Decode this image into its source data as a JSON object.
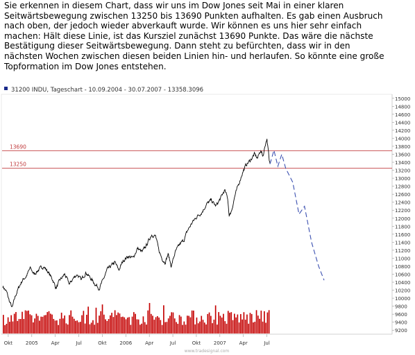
{
  "intro_lines": [
    "Sie erkennen in diesem Chart, dass wir uns im Dow Jones seit Mai in einer  klaren",
    "Seitwärtsbewegung zwischen 13250 bis 13690 Punkten aufhalten. Es gab  einen Ausbruch",
    "nach oben, der jedoch wieder abverkauft wurde. Wir können es uns  hier sehr einfach",
    "machen: Hält diese Linie, ist das Kursziel zunächst 13690  Punkte. Das wäre die nächste",
    "Bestätigung dieser Seitwärtsbewegung. Dann steht zu  befürchten, dass wir in den",
    "nächsten Wochen zwischen diesen beiden Linien hin-  und herlaufen. So könnte eine große",
    "Topformation im Dow Jones entstehen."
  ],
  "chart_data": {
    "type": "line",
    "header": "31200 INDU, Tageschart - 10.09.2004 - 30.07.2007 - 13358.3096",
    "watermark": "www.tradesignal.com",
    "colors": {
      "price": "#000000",
      "projection": "#3a4fb0",
      "resistance": "#c0393b",
      "volume": "#c40000",
      "header_marker": "#1a2a8a",
      "axis_text": "#333333"
    },
    "ylim": [
      9100,
      15100
    ],
    "y_ticks": [
      15000,
      14800,
      14600,
      14400,
      14200,
      14000,
      13800,
      13600,
      13400,
      13200,
      13000,
      12800,
      12600,
      12400,
      12200,
      12000,
      11800,
      11600,
      11400,
      11200,
      11000,
      10800,
      10600,
      10400,
      10200,
      10000,
      9800,
      9600,
      9400,
      9200
    ],
    "x_ticks": [
      {
        "label": "Okt",
        "t": 0.7
      },
      {
        "label": "2005",
        "t": 3.7
      },
      {
        "label": "Apr",
        "t": 6.7
      },
      {
        "label": "Jul",
        "t": 9.7
      },
      {
        "label": "Okt",
        "t": 12.7
      },
      {
        "label": "2006",
        "t": 15.7
      },
      {
        "label": "Apr",
        "t": 18.7
      },
      {
        "label": "Jul",
        "t": 21.7
      },
      {
        "label": "Okt",
        "t": 24.7
      },
      {
        "label": "2007",
        "t": 27.7
      },
      {
        "label": "Apr",
        "t": 30.7
      },
      {
        "label": "Jul",
        "t": 33.7
      }
    ],
    "t_range": [
      0,
      49.5
    ],
    "levels": [
      {
        "label": "13690",
        "value": 13690
      },
      {
        "label": "13250",
        "value": 13250
      }
    ],
    "price_anchors": [
      [
        0.0,
        10300
      ],
      [
        0.5,
        10150
      ],
      [
        0.8,
        9950
      ],
      [
        1.2,
        9750
      ],
      [
        1.6,
        10050
      ],
      [
        2.0,
        10250
      ],
      [
        2.5,
        10450
      ],
      [
        3.0,
        10550
      ],
      [
        3.5,
        10750
      ],
      [
        4.0,
        10600
      ],
      [
        4.5,
        10700
      ],
      [
        5.2,
        10800
      ],
      [
        5.8,
        10650
      ],
      [
        6.4,
        10450
      ],
      [
        6.8,
        10250
      ],
      [
        7.3,
        10450
      ],
      [
        7.9,
        10600
      ],
      [
        8.5,
        10350
      ],
      [
        9.0,
        10500
      ],
      [
        9.5,
        10600
      ],
      [
        10.0,
        10450
      ],
      [
        10.6,
        10650
      ],
      [
        11.2,
        10500
      ],
      [
        11.8,
        10350
      ],
      [
        12.3,
        10250
      ],
      [
        12.8,
        10450
      ],
      [
        13.3,
        10700
      ],
      [
        13.8,
        10800
      ],
      [
        14.3,
        10900
      ],
      [
        14.8,
        10700
      ],
      [
        15.4,
        10950
      ],
      [
        16.0,
        11050
      ],
      [
        16.6,
        11000
      ],
      [
        17.2,
        11250
      ],
      [
        17.8,
        11150
      ],
      [
        18.4,
        11350
      ],
      [
        19.0,
        11600
      ],
      [
        19.5,
        11550
      ],
      [
        19.9,
        11200
      ],
      [
        20.3,
        11000
      ],
      [
        20.7,
        10900
      ],
      [
        21.1,
        11100
      ],
      [
        21.5,
        10800
      ],
      [
        22.0,
        11150
      ],
      [
        22.6,
        11350
      ],
      [
        23.1,
        11450
      ],
      [
        23.6,
        11700
      ],
      [
        24.2,
        11900
      ],
      [
        24.8,
        12050
      ],
      [
        25.4,
        12150
      ],
      [
        26.0,
        12350
      ],
      [
        26.6,
        12450
      ],
      [
        27.2,
        12300
      ],
      [
        27.8,
        12500
      ],
      [
        28.3,
        12700
      ],
      [
        28.7,
        12500
      ],
      [
        28.9,
        12050
      ],
      [
        29.2,
        12200
      ],
      [
        29.6,
        12550
      ],
      [
        30.1,
        12850
      ],
      [
        30.6,
        13150
      ],
      [
        31.1,
        13350
      ],
      [
        31.6,
        13450
      ],
      [
        32.1,
        13600
      ],
      [
        32.5,
        13500
      ],
      [
        32.9,
        13700
      ],
      [
        33.2,
        13550
      ],
      [
        33.5,
        13850
      ],
      [
        33.7,
        14000
      ],
      [
        33.9,
        13650
      ],
      [
        34.0,
        13400
      ],
      [
        34.1,
        13358
      ]
    ],
    "projection_anchors": [
      [
        34.1,
        13358
      ],
      [
        34.6,
        13700
      ],
      [
        35.1,
        13300
      ],
      [
        35.6,
        13600
      ],
      [
        36.1,
        13250
      ],
      [
        37.0,
        12900
      ],
      [
        37.8,
        12100
      ],
      [
        38.5,
        12300
      ],
      [
        39.4,
        11400
      ],
      [
        40.3,
        10800
      ],
      [
        41.0,
        10450
      ]
    ],
    "volume_bars": 170
  }
}
